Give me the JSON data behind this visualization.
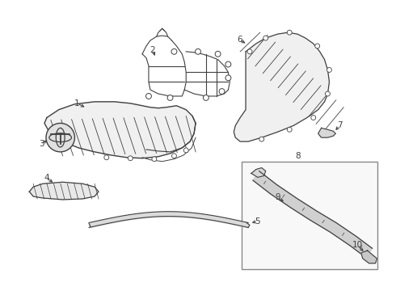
{
  "background_color": "#ffffff",
  "line_color": "#404040",
  "label_color": "#222222",
  "fig_width": 4.9,
  "fig_height": 3.6,
  "dpi": 100
}
